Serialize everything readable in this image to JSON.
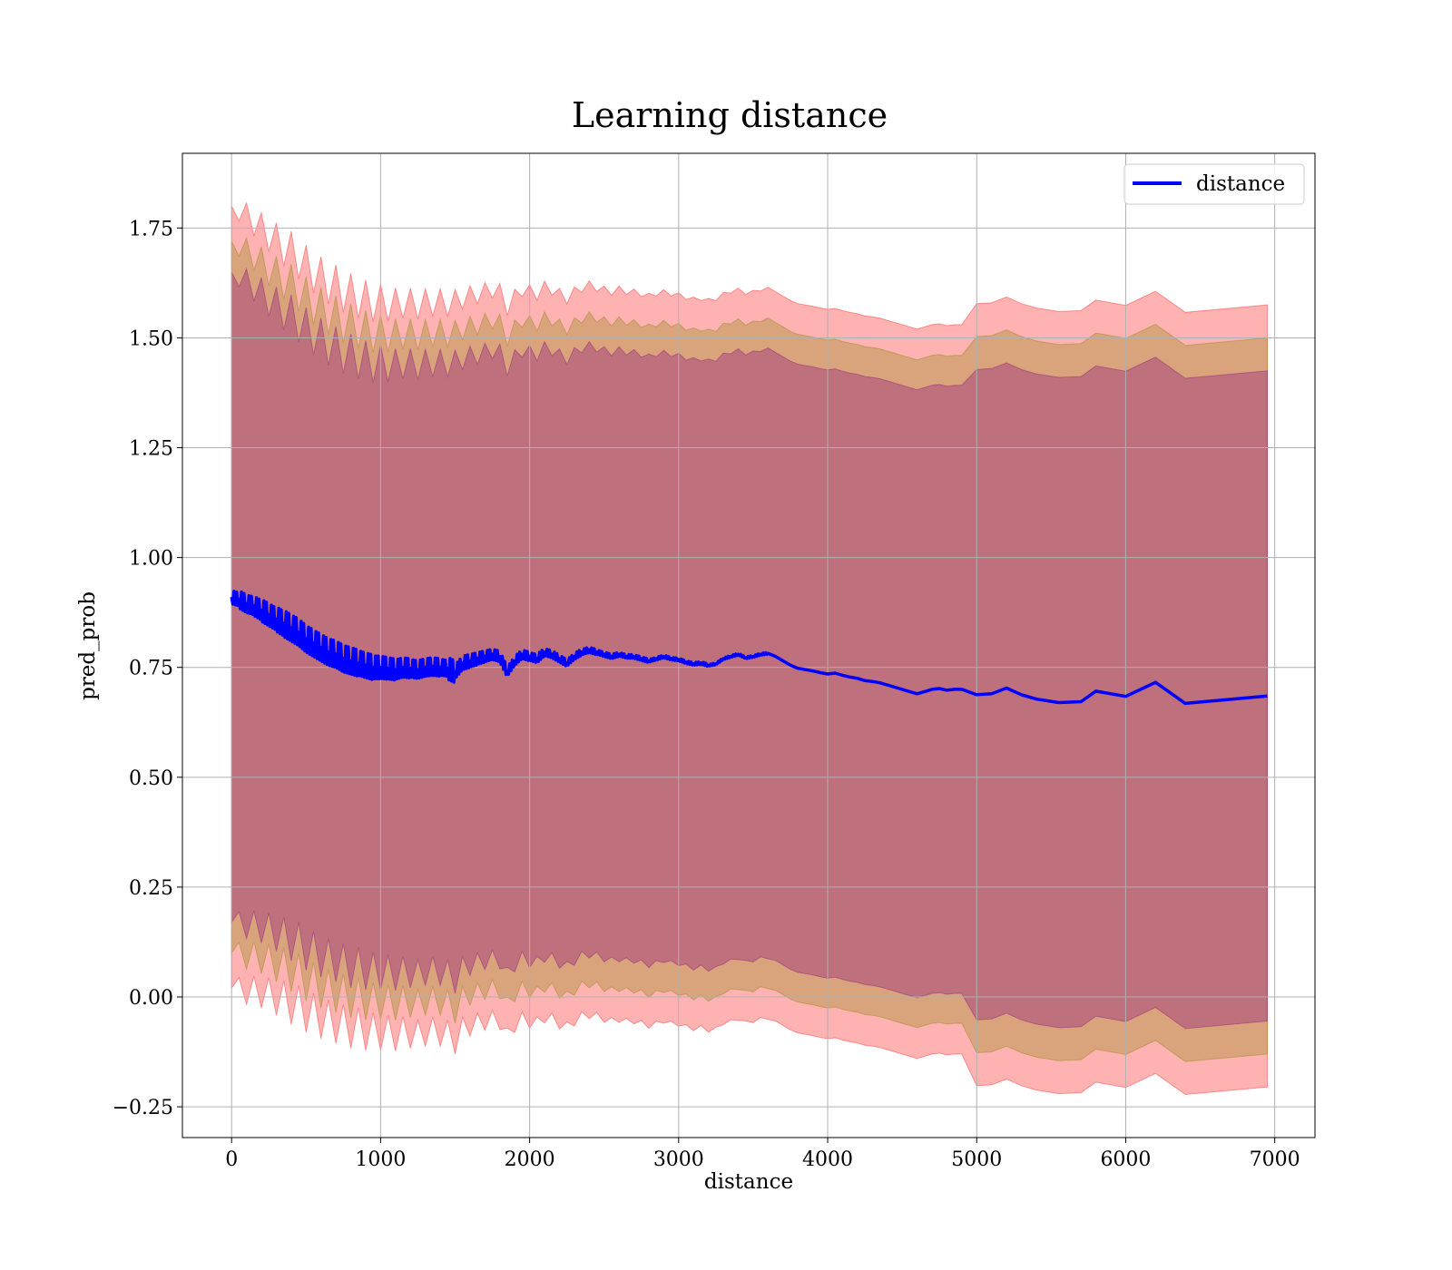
{
  "chart_data": {
    "type": "line",
    "title": "Learning distance",
    "xlabel": "distance",
    "ylabel": "pred_prob",
    "xlim": [
      -330,
      7270
    ],
    "ylim": [
      -0.32,
      1.92
    ],
    "xticks": [
      0,
      1000,
      2000,
      3000,
      4000,
      5000,
      6000,
      7000
    ],
    "xtick_labels": [
      "0",
      "1000",
      "2000",
      "3000",
      "4000",
      "5000",
      "6000",
      "7000"
    ],
    "yticks": [
      -0.25,
      0.0,
      0.25,
      0.5,
      0.75,
      1.0,
      1.25,
      1.5,
      1.75
    ],
    "ytick_labels": [
      "−0.25",
      "0.00",
      "0.25",
      "0.50",
      "0.75",
      "1.00",
      "1.25",
      "1.50",
      "1.75"
    ],
    "grid": true,
    "legend_position": "top-right",
    "colors": {
      "line": "#0000ff",
      "band_outer": "#ff0000",
      "band_middle": "#808000",
      "band_inner": "#800080",
      "grid": "#b0b0b0"
    },
    "series": [
      {
        "name": "distance",
        "x": [
          0,
          50,
          100,
          150,
          200,
          250,
          300,
          350,
          400,
          450,
          500,
          550,
          600,
          650,
          700,
          750,
          800,
          850,
          900,
          950,
          1000,
          1050,
          1100,
          1150,
          1200,
          1250,
          1300,
          1350,
          1400,
          1450,
          1500,
          1550,
          1600,
          1650,
          1700,
          1750,
          1800,
          1850,
          1900,
          1950,
          2000,
          2050,
          2100,
          2150,
          2200,
          2250,
          2300,
          2350,
          2400,
          2450,
          2500,
          2550,
          2600,
          2650,
          2700,
          2750,
          2800,
          2850,
          2900,
          2950,
          3000,
          3050,
          3100,
          3150,
          3200,
          3250,
          3300,
          3350,
          3400,
          3450,
          3500,
          3550,
          3600,
          3650,
          3700,
          3750,
          3800,
          3850,
          3900,
          3950,
          4000,
          4050,
          4100,
          4150,
          4200,
          4250,
          4300,
          4350,
          4400,
          4450,
          4500,
          4550,
          4600,
          4650,
          4700,
          4750,
          4800,
          4850,
          4900,
          5000,
          5100,
          5200,
          5300,
          5400,
          5550,
          5700,
          5800,
          6000,
          6200,
          6400,
          6950
        ],
        "values": [
          0.91,
          0.905,
          0.895,
          0.89,
          0.88,
          0.87,
          0.86,
          0.85,
          0.84,
          0.83,
          0.815,
          0.805,
          0.795,
          0.785,
          0.78,
          0.77,
          0.765,
          0.76,
          0.755,
          0.75,
          0.75,
          0.748,
          0.745,
          0.75,
          0.748,
          0.745,
          0.75,
          0.752,
          0.75,
          0.748,
          0.74,
          0.76,
          0.765,
          0.77,
          0.775,
          0.78,
          0.775,
          0.74,
          0.765,
          0.78,
          0.775,
          0.77,
          0.785,
          0.78,
          0.77,
          0.76,
          0.775,
          0.785,
          0.79,
          0.785,
          0.78,
          0.775,
          0.78,
          0.775,
          0.775,
          0.77,
          0.765,
          0.77,
          0.775,
          0.77,
          0.768,
          0.762,
          0.758,
          0.76,
          0.755,
          0.758,
          0.77,
          0.775,
          0.78,
          0.772,
          0.775,
          0.78,
          0.782,
          0.775,
          0.765,
          0.755,
          0.748,
          0.745,
          0.742,
          0.738,
          0.735,
          0.737,
          0.732,
          0.728,
          0.725,
          0.72,
          0.718,
          0.715,
          0.71,
          0.705,
          0.7,
          0.695,
          0.69,
          0.695,
          0.7,
          0.702,
          0.698,
          0.7,
          0.7,
          0.688,
          0.69,
          0.703,
          0.688,
          0.678,
          0.67,
          0.672,
          0.696,
          0.684,
          0.716,
          0.668,
          0.685
        ],
        "noise": [
          0.0,
          0.015,
          0.02,
          0.02,
          0.022,
          0.025,
          0.025,
          0.028,
          0.03,
          0.03,
          0.03,
          0.03,
          0.03,
          0.03,
          0.03,
          0.03,
          0.03,
          0.03,
          0.028,
          0.028,
          0.026,
          0.025,
          0.024,
          0.022,
          0.022,
          0.02,
          0.02,
          0.02,
          0.02,
          0.018,
          0.025,
          0.015,
          0.015,
          0.014,
          0.013,
          0.012,
          0.012,
          0.012,
          0.01,
          0.01,
          0.01,
          0.009,
          0.009,
          0.008,
          0.008,
          0.008,
          0.007,
          0.007,
          0.006,
          0.006,
          0.005,
          0.005,
          0.005,
          0.004,
          0.004,
          0.004,
          0.004,
          0.003,
          0.003,
          0.003,
          0.003,
          0.003,
          0.003,
          0.003,
          0.003,
          0.002,
          0.002,
          0.002,
          0.002,
          0.002,
          0.002,
          0.002,
          0.002,
          0.0,
          0.0,
          0.0,
          0.0,
          0.0,
          0.0,
          0.0,
          0.0,
          0.0,
          0.0,
          0.0,
          0.0,
          0.0,
          0.0,
          0.0,
          0.0,
          0.0,
          0.0,
          0.0,
          0.0,
          0.0,
          0.0,
          0.0,
          0.0,
          0.0,
          0.0,
          0.0,
          0.0,
          0.0,
          0.0,
          0.0,
          0.0,
          0.0,
          0.0,
          0.0,
          0.0,
          0.0,
          0.0
        ],
        "band_outer_halfwidth": [
          0.89,
          0.885,
          0.88,
          0.875,
          0.87,
          0.866,
          0.862,
          0.858,
          0.855,
          0.852,
          0.848,
          0.845,
          0.842,
          0.84,
          0.838,
          0.836,
          0.834,
          0.833,
          0.832,
          0.831,
          0.83,
          0.83,
          0.83,
          0.83,
          0.83,
          0.83,
          0.83,
          0.83,
          0.83,
          0.83,
          0.83,
          0.83,
          0.83,
          0.83,
          0.83,
          0.83,
          0.83,
          0.83,
          0.83,
          0.83,
          0.83,
          0.83,
          0.83,
          0.83,
          0.83,
          0.83,
          0.83,
          0.83,
          0.83,
          0.83,
          0.83,
          0.83,
          0.83,
          0.83,
          0.83,
          0.83,
          0.83,
          0.83,
          0.83,
          0.83,
          0.83,
          0.83,
          0.83,
          0.83,
          0.83,
          0.83,
          0.83,
          0.83,
          0.83,
          0.83,
          0.83,
          0.83,
          0.83,
          0.83,
          0.83,
          0.83,
          0.83,
          0.83,
          0.83,
          0.83,
          0.83,
          0.83,
          0.83,
          0.83,
          0.83,
          0.83,
          0.83,
          0.83,
          0.83,
          0.83,
          0.83,
          0.83,
          0.83,
          0.83,
          0.83,
          0.83,
          0.83,
          0.83,
          0.83,
          0.89,
          0.89,
          0.89,
          0.89,
          0.89,
          0.89,
          0.89,
          0.89,
          0.89,
          0.89,
          0.89,
          0.89
        ],
        "band_middle_halfwidth": [
          0.81,
          0.805,
          0.8,
          0.796,
          0.792,
          0.789,
          0.786,
          0.783,
          0.78,
          0.778,
          0.776,
          0.774,
          0.772,
          0.77,
          0.768,
          0.766,
          0.765,
          0.764,
          0.763,
          0.762,
          0.76,
          0.76,
          0.76,
          0.76,
          0.76,
          0.76,
          0.76,
          0.76,
          0.76,
          0.76,
          0.76,
          0.76,
          0.76,
          0.76,
          0.76,
          0.76,
          0.76,
          0.76,
          0.76,
          0.76,
          0.76,
          0.76,
          0.76,
          0.76,
          0.76,
          0.76,
          0.76,
          0.76,
          0.76,
          0.76,
          0.76,
          0.76,
          0.76,
          0.76,
          0.76,
          0.76,
          0.76,
          0.76,
          0.76,
          0.76,
          0.76,
          0.76,
          0.76,
          0.76,
          0.76,
          0.76,
          0.76,
          0.76,
          0.76,
          0.76,
          0.76,
          0.76,
          0.76,
          0.76,
          0.76,
          0.76,
          0.76,
          0.76,
          0.76,
          0.76,
          0.76,
          0.76,
          0.76,
          0.76,
          0.76,
          0.76,
          0.76,
          0.76,
          0.76,
          0.76,
          0.76,
          0.76,
          0.76,
          0.76,
          0.76,
          0.76,
          0.76,
          0.76,
          0.76,
          0.815,
          0.815,
          0.815,
          0.815,
          0.815,
          0.815,
          0.815,
          0.815,
          0.815,
          0.815,
          0.815,
          0.815
        ],
        "band_inner_halfwidth": [
          0.74,
          0.735,
          0.73,
          0.726,
          0.722,
          0.719,
          0.716,
          0.713,
          0.71,
          0.708,
          0.706,
          0.704,
          0.702,
          0.7,
          0.698,
          0.697,
          0.696,
          0.695,
          0.694,
          0.693,
          0.692,
          0.692,
          0.692,
          0.692,
          0.692,
          0.692,
          0.692,
          0.692,
          0.692,
          0.692,
          0.692,
          0.692,
          0.692,
          0.692,
          0.692,
          0.692,
          0.692,
          0.692,
          0.692,
          0.692,
          0.692,
          0.692,
          0.692,
          0.692,
          0.692,
          0.692,
          0.692,
          0.692,
          0.692,
          0.692,
          0.692,
          0.692,
          0.692,
          0.692,
          0.692,
          0.692,
          0.692,
          0.692,
          0.692,
          0.692,
          0.692,
          0.692,
          0.692,
          0.692,
          0.692,
          0.692,
          0.692,
          0.692,
          0.692,
          0.692,
          0.692,
          0.692,
          0.692,
          0.692,
          0.692,
          0.692,
          0.692,
          0.692,
          0.692,
          0.692,
          0.692,
          0.692,
          0.692,
          0.692,
          0.692,
          0.692,
          0.692,
          0.692,
          0.692,
          0.692,
          0.692,
          0.692,
          0.692,
          0.692,
          0.692,
          0.692,
          0.692,
          0.692,
          0.692,
          0.74,
          0.74,
          0.74,
          0.74,
          0.74,
          0.74,
          0.74,
          0.74,
          0.74,
          0.74,
          0.74,
          0.74
        ]
      }
    ]
  }
}
